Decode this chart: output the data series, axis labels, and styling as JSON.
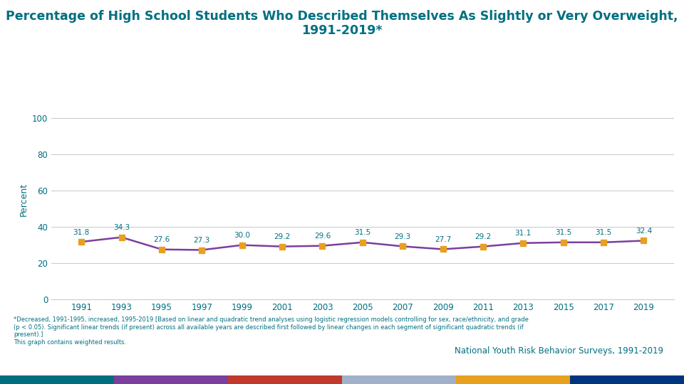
{
  "title_line1": "Percentage of High School Students Who Described Themselves As Slightly or Very Overweight,",
  "title_line2": "1991-2019*",
  "years": [
    1991,
    1993,
    1995,
    1997,
    1999,
    2001,
    2003,
    2005,
    2007,
    2009,
    2011,
    2013,
    2015,
    2017,
    2019
  ],
  "values": [
    31.8,
    34.3,
    27.6,
    27.3,
    30.0,
    29.2,
    29.6,
    31.5,
    29.3,
    27.7,
    29.2,
    31.1,
    31.5,
    31.5,
    32.4
  ],
  "line_color": "#7B3F9E",
  "marker_color": "#E8A020",
  "title_color": "#007080",
  "axis_label_color": "#007080",
  "tick_color": "#007080",
  "ylabel": "Percent",
  "ylim": [
    0,
    110
  ],
  "yticks": [
    0,
    20,
    40,
    60,
    80,
    100
  ],
  "grid_color": "#cccccc",
  "footnote_line1": "*Decreased, 1991-1995, increased, 1995-2019 [Based on linear and quadratic trend analyses using logistic regression models controlling for sex, race/ethnicity, and grade",
  "footnote_line2": "(p < 0.05). Significant linear trends (if present) across all available years are described first followed by linear changes in each segment of significant quadratic trends (if",
  "footnote_line3": "present).]",
  "footnote_line4": "This graph contains weighted results.",
  "source_text": "National Youth Risk Behavior Surveys, 1991-2019",
  "footer_colors": [
    "#007080",
    "#7B3F9E",
    "#C0392B",
    "#A0B0C8",
    "#E8A020",
    "#003580"
  ],
  "background_color": "#ffffff"
}
